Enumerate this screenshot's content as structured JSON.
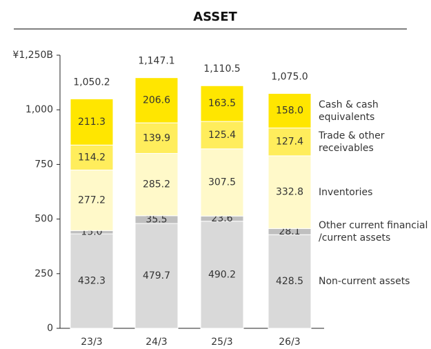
{
  "chart_data": {
    "type": "stacked_bar",
    "title": "ASSET",
    "categories": [
      "23/3",
      "24/3",
      "25/3",
      "26/3"
    ],
    "series": [
      {
        "name": "Non-current assets",
        "color": "#d9d9d9",
        "values": [
          432.3,
          479.7,
          490.2,
          428.5
        ],
        "value_labels": [
          "432.3",
          "479.7",
          "490.2",
          "428.5"
        ]
      },
      {
        "name": "Other current financial /current assets",
        "color": "#bfbfbf",
        "values": [
          15.0,
          35.5,
          23.6,
          28.1
        ],
        "value_labels": [
          "15.0",
          "35.5",
          "23.6",
          "28.1"
        ]
      },
      {
        "name": "Inventories",
        "color": "#fff9c9",
        "values": [
          277.2,
          285.2,
          307.5,
          332.8
        ],
        "value_labels": [
          "277.2",
          "285.2",
          "307.5",
          "332.8"
        ]
      },
      {
        "name": "Trade & other receivables",
        "color": "#ffed5c",
        "values": [
          114.2,
          139.9,
          125.4,
          127.4
        ],
        "value_labels": [
          "114.2",
          "139.9",
          "125.4",
          "127.4"
        ]
      },
      {
        "name": "Cash & cash equivalents",
        "color": "#ffe600",
        "values": [
          211.3,
          206.6,
          163.5,
          158.0
        ],
        "value_labels": [
          "211.3",
          "206.6",
          "163.5",
          "158.0"
        ]
      }
    ],
    "totals": [
      1050.2,
      1147.1,
      1110.5,
      1075.0
    ],
    "total_labels": [
      "1,050.2",
      "1,147.1",
      "1,110.5",
      "1,075.0"
    ],
    "ylim": [
      0,
      1250
    ],
    "yticks": [
      0,
      250,
      500,
      750,
      {
        "value": 1000,
        "label": "1,000"
      },
      {
        "value": 1250,
        "label": "¥1,250B"
      }
    ],
    "grid": false
  }
}
